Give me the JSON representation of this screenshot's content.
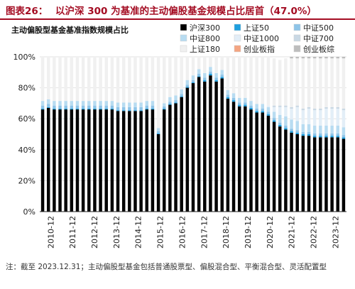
{
  "figure": {
    "label": "图表26：",
    "title": "以沪深 300 为基准的主动偏股基金规模占比居首（47.0%）"
  },
  "note": "注：截至 2023.12.31；主动偏股型基金包括普通股票型、偏股混合型、平衡混合型、灵活配置型",
  "chart_data": {
    "type": "bar",
    "stacked": true,
    "title": "主动偏股型基金基准指数规模占比",
    "xlabel": "",
    "ylabel": "",
    "ylim": [
      0,
      100
    ],
    "yticks": [
      "0%",
      "20%",
      "40%",
      "60%",
      "80%",
      "100%"
    ],
    "xtick_labels": [
      "2010-12",
      "2011-12",
      "2012-12",
      "2013-12",
      "2014-12",
      "2015-12",
      "2016-12",
      "2017-12",
      "2018-12",
      "2019-12",
      "2020-12",
      "2021-12",
      "2022-12",
      "2023-12"
    ],
    "legend_position": "top-right",
    "colors": {
      "沪深300": "#000000",
      "上证50": "#1f9fde",
      "中证500": "#8ec4e8",
      "中证800": "#b8dcf1",
      "中证1000": "#e3eef7",
      "中证700": "#c9d8e4",
      "上证180": "#f0f0f0",
      "创业板指": "#f4a582",
      "创业板综": "#bdbdbd"
    },
    "series": [
      {
        "name": "沪深300",
        "values": [
          66,
          67,
          66,
          66,
          66,
          66,
          66,
          66,
          66,
          66,
          66,
          66,
          66,
          65,
          65,
          65,
          65,
          65,
          66,
          66,
          50,
          66,
          69,
          70,
          74,
          80,
          83,
          87,
          84,
          88,
          84,
          86,
          73,
          71,
          68,
          68,
          66,
          64,
          64,
          62,
          58,
          55,
          53,
          51,
          50,
          49,
          49,
          48,
          48,
          48,
          48,
          48,
          47
        ]
      },
      {
        "name": "上证50",
        "values": [
          0.5,
          0.5,
          0.5,
          0.5,
          0.5,
          0.5,
          0.5,
          0.5,
          0.5,
          0.5,
          0.5,
          0.5,
          0.5,
          0.5,
          0.5,
          0.5,
          0.5,
          0.5,
          0.5,
          0.5,
          0.5,
          0.5,
          0.5,
          0.5,
          0.5,
          0.5,
          0.5,
          0.5,
          1,
          1,
          1,
          1,
          1,
          1,
          1,
          1,
          1,
          1,
          1,
          1,
          1,
          1,
          1,
          1,
          1,
          1,
          1,
          1,
          1,
          1,
          1,
          1,
          1
        ]
      },
      {
        "name": "中证500",
        "values": [
          2,
          2,
          2,
          2,
          2,
          2,
          2,
          2,
          2,
          2,
          2,
          2,
          2,
          2,
          2,
          2,
          2,
          2,
          2,
          2,
          1.5,
          1.5,
          1.5,
          1.5,
          1.5,
          1.5,
          1.5,
          1.5,
          1.5,
          1.5,
          1.5,
          1.5,
          1.5,
          1.5,
          1.5,
          1.5,
          1.5,
          1.5,
          1.5,
          1.5,
          1.5,
          1.5,
          1.5,
          1.5,
          1.5,
          1.5,
          1.5,
          1.5,
          1.5,
          1.5,
          1.5,
          1.5,
          1.5
        ]
      },
      {
        "name": "中证800",
        "values": [
          3,
          3,
          3,
          3,
          3,
          3,
          3,
          3,
          3,
          3,
          3,
          3,
          3,
          3,
          3,
          3,
          3,
          3,
          3,
          3,
          2,
          2,
          3,
          3,
          3,
          3,
          3,
          3,
          3,
          3,
          3,
          3,
          3,
          3,
          3,
          3,
          3,
          3,
          3,
          3,
          4,
          5,
          6,
          6,
          6,
          5,
          5,
          5,
          5,
          5,
          5,
          5,
          5
        ]
      },
      {
        "name": "中证1000",
        "values": [
          0,
          0,
          0,
          0,
          0,
          0,
          0,
          0,
          0,
          0,
          0,
          0,
          0,
          0,
          0,
          0,
          0,
          0,
          0,
          0,
          0,
          0,
          0,
          0,
          0,
          0,
          0,
          0,
          0,
          0,
          0,
          0,
          0,
          0,
          0,
          0,
          0,
          0,
          0,
          1,
          3,
          5,
          6,
          7,
          9,
          9,
          10,
          10,
          10,
          11,
          11,
          11,
          11
        ]
      },
      {
        "name": "中证700",
        "values": [
          0,
          0,
          0,
          0,
          0,
          0,
          0,
          0,
          0,
          0,
          0,
          0,
          0,
          0,
          0,
          0,
          0,
          0,
          0,
          0,
          0,
          0,
          0,
          0,
          0,
          0,
          0,
          0,
          0,
          0,
          0,
          0,
          0,
          0,
          0,
          0,
          0,
          0,
          0,
          0,
          1,
          1,
          1,
          1,
          1,
          1,
          1,
          1,
          1,
          1,
          1,
          1,
          1
        ]
      },
      {
        "name": "上证180",
        "values": [
          28,
          27,
          28,
          28,
          28,
          28,
          28,
          28,
          28,
          28,
          28,
          28,
          28,
          29,
          29,
          29,
          29,
          29,
          28,
          28,
          46,
          30,
          26,
          25,
          21,
          15,
          12,
          8,
          10.5,
          6.5,
          10.5,
          8.5,
          21.5,
          23.5,
          26.5,
          26.5,
          28.5,
          30.5,
          30.5,
          31.5,
          30.5,
          29.5,
          30.5,
          31.5,
          30.5,
          32.5,
          31.5,
          32.5,
          32.5,
          31.5,
          31.5,
          31.5,
          32.5
        ]
      },
      {
        "name": "创业板指",
        "values": [
          0,
          0,
          0,
          0,
          0,
          0,
          0,
          0,
          0,
          0,
          0,
          0,
          0,
          0,
          0,
          0,
          0,
          0,
          0,
          0,
          0,
          0,
          0,
          0,
          0,
          0,
          0,
          0,
          0,
          0,
          0,
          0,
          0,
          0,
          0,
          0,
          0,
          0,
          0,
          0,
          0,
          0,
          0,
          0,
          0,
          0,
          0,
          0,
          0,
          0,
          0,
          0,
          0
        ]
      },
      {
        "name": "创业板综",
        "values": [
          0,
          0,
          0,
          0,
          0,
          0,
          0,
          0,
          0,
          0,
          0,
          0,
          0,
          0,
          0,
          0,
          0,
          0,
          0,
          0,
          0,
          0,
          0,
          0,
          0,
          0,
          0,
          0,
          0,
          0,
          0,
          0,
          0,
          0,
          0,
          0,
          0,
          0,
          0,
          0,
          0,
          0,
          0,
          1,
          1,
          1,
          1,
          1,
          1,
          1,
          1,
          1,
          1
        ]
      }
    ]
  }
}
